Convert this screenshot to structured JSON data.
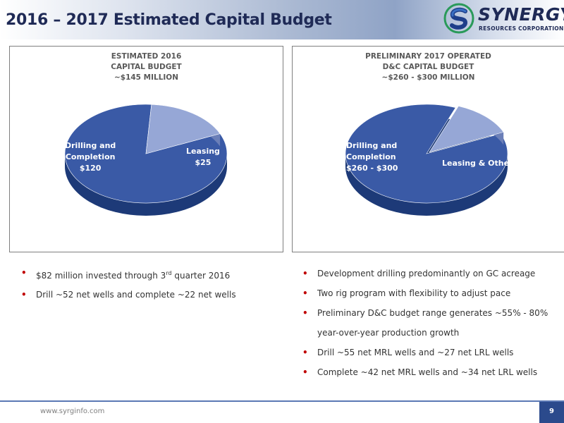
{
  "header": {
    "title": "2016 – 2017 Estimated Capital Budget",
    "logo_name": "SYNERGY",
    "logo_sub": "RESOURCES CORPORATION"
  },
  "left_panel": {
    "title_lines": [
      "ESTIMATED 2016",
      "CAPITAL BUDGET",
      "~$145 MILLION"
    ],
    "slice_labels": {
      "drilling": [
        "Drilling and",
        "Completion",
        "$120"
      ],
      "leasing": [
        "Leasing",
        "$25"
      ]
    }
  },
  "right_panel": {
    "title_lines": [
      "PRELIMINARY 2017 OPERATED",
      "D&C CAPITAL BUDGET",
      "~$260 - $300 MILLION"
    ],
    "slice_labels": {
      "drilling": [
        "Drilling and",
        "Completion",
        "$260 - $300"
      ],
      "leasing": "Leasing & Other"
    }
  },
  "left_bullets": [
    {
      "text": "$82 million invested through 3",
      "sup": "rd",
      "after": " quarter 2016"
    },
    {
      "text": "Drill ~52 net wells and complete ~22 net wells"
    }
  ],
  "right_bullets": [
    "Development drilling predominantly on GC acreage",
    "Two rig program with flexibility to adjust pace",
    "Preliminary D&C budget range generates ~55% - 80%",
    "year-over-year production growth",
    "Drill ~55 net MRL wells and ~27 net LRL wells",
    "Complete ~42 net MRL wells and ~34 net LRL wells"
  ],
  "footer": {
    "url": "www.syrginfo.com",
    "page_number": "9"
  },
  "chart_data": [
    {
      "type": "pie",
      "title": "ESTIMATED 2016 CAPITAL BUDGET ~$145 MILLION",
      "categories": [
        "Drilling and Completion",
        "Leasing"
      ],
      "values": [
        120,
        25
      ],
      "colors": [
        "#3a5aa6",
        "#96a7d6"
      ]
    },
    {
      "type": "pie",
      "title": "PRELIMINARY 2017 OPERATED D&C CAPITAL BUDGET ~$260 - $300 MILLION",
      "categories": [
        "Drilling and Completion",
        "Leasing & Other"
      ],
      "values": [
        280,
        40
      ],
      "value_labels": [
        "$260 - $300",
        ""
      ],
      "colors": [
        "#3a5aa6",
        "#96a7d6"
      ]
    }
  ]
}
